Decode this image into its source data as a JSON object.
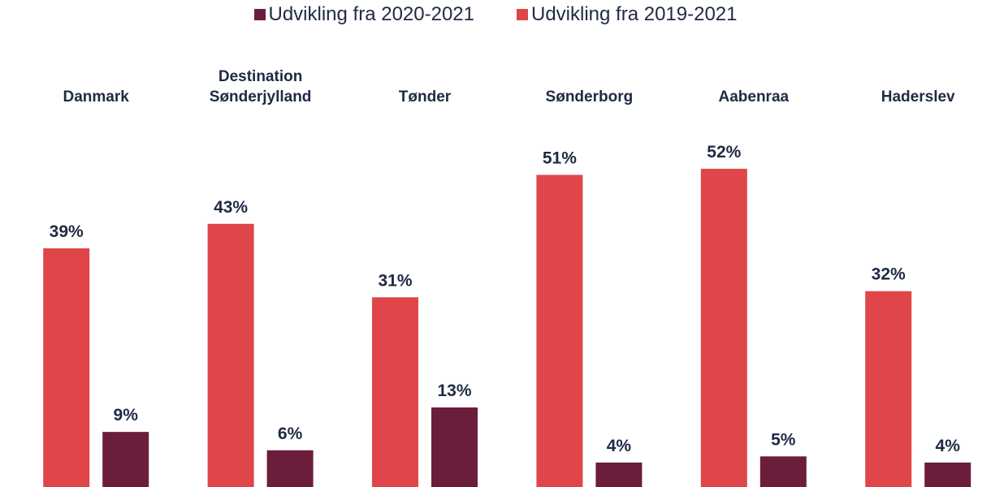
{
  "chart_data": {
    "type": "bar",
    "categories": [
      "Danmark",
      "Destination Sønderjylland",
      "Tønder",
      "Sønderborg",
      "Aabenraa",
      "Haderslev"
    ],
    "series": [
      {
        "name": "Udvikling fra 2020-2021",
        "color": "#6b1d3b",
        "values": [
          9,
          6,
          13,
          4,
          5,
          4
        ],
        "value_labels": [
          "9%",
          "6%",
          "13%",
          "4%",
          "5%",
          "4%"
        ]
      },
      {
        "name": "Udvikling fra 2019-2021",
        "color": "#e04649",
        "values": [
          39,
          43,
          31,
          51,
          52,
          32
        ],
        "value_labels": [
          "39%",
          "43%",
          "31%",
          "51%",
          "52%",
          "32%"
        ]
      }
    ],
    "ylim": [
      0,
      55
    ],
    "legend": "top"
  }
}
